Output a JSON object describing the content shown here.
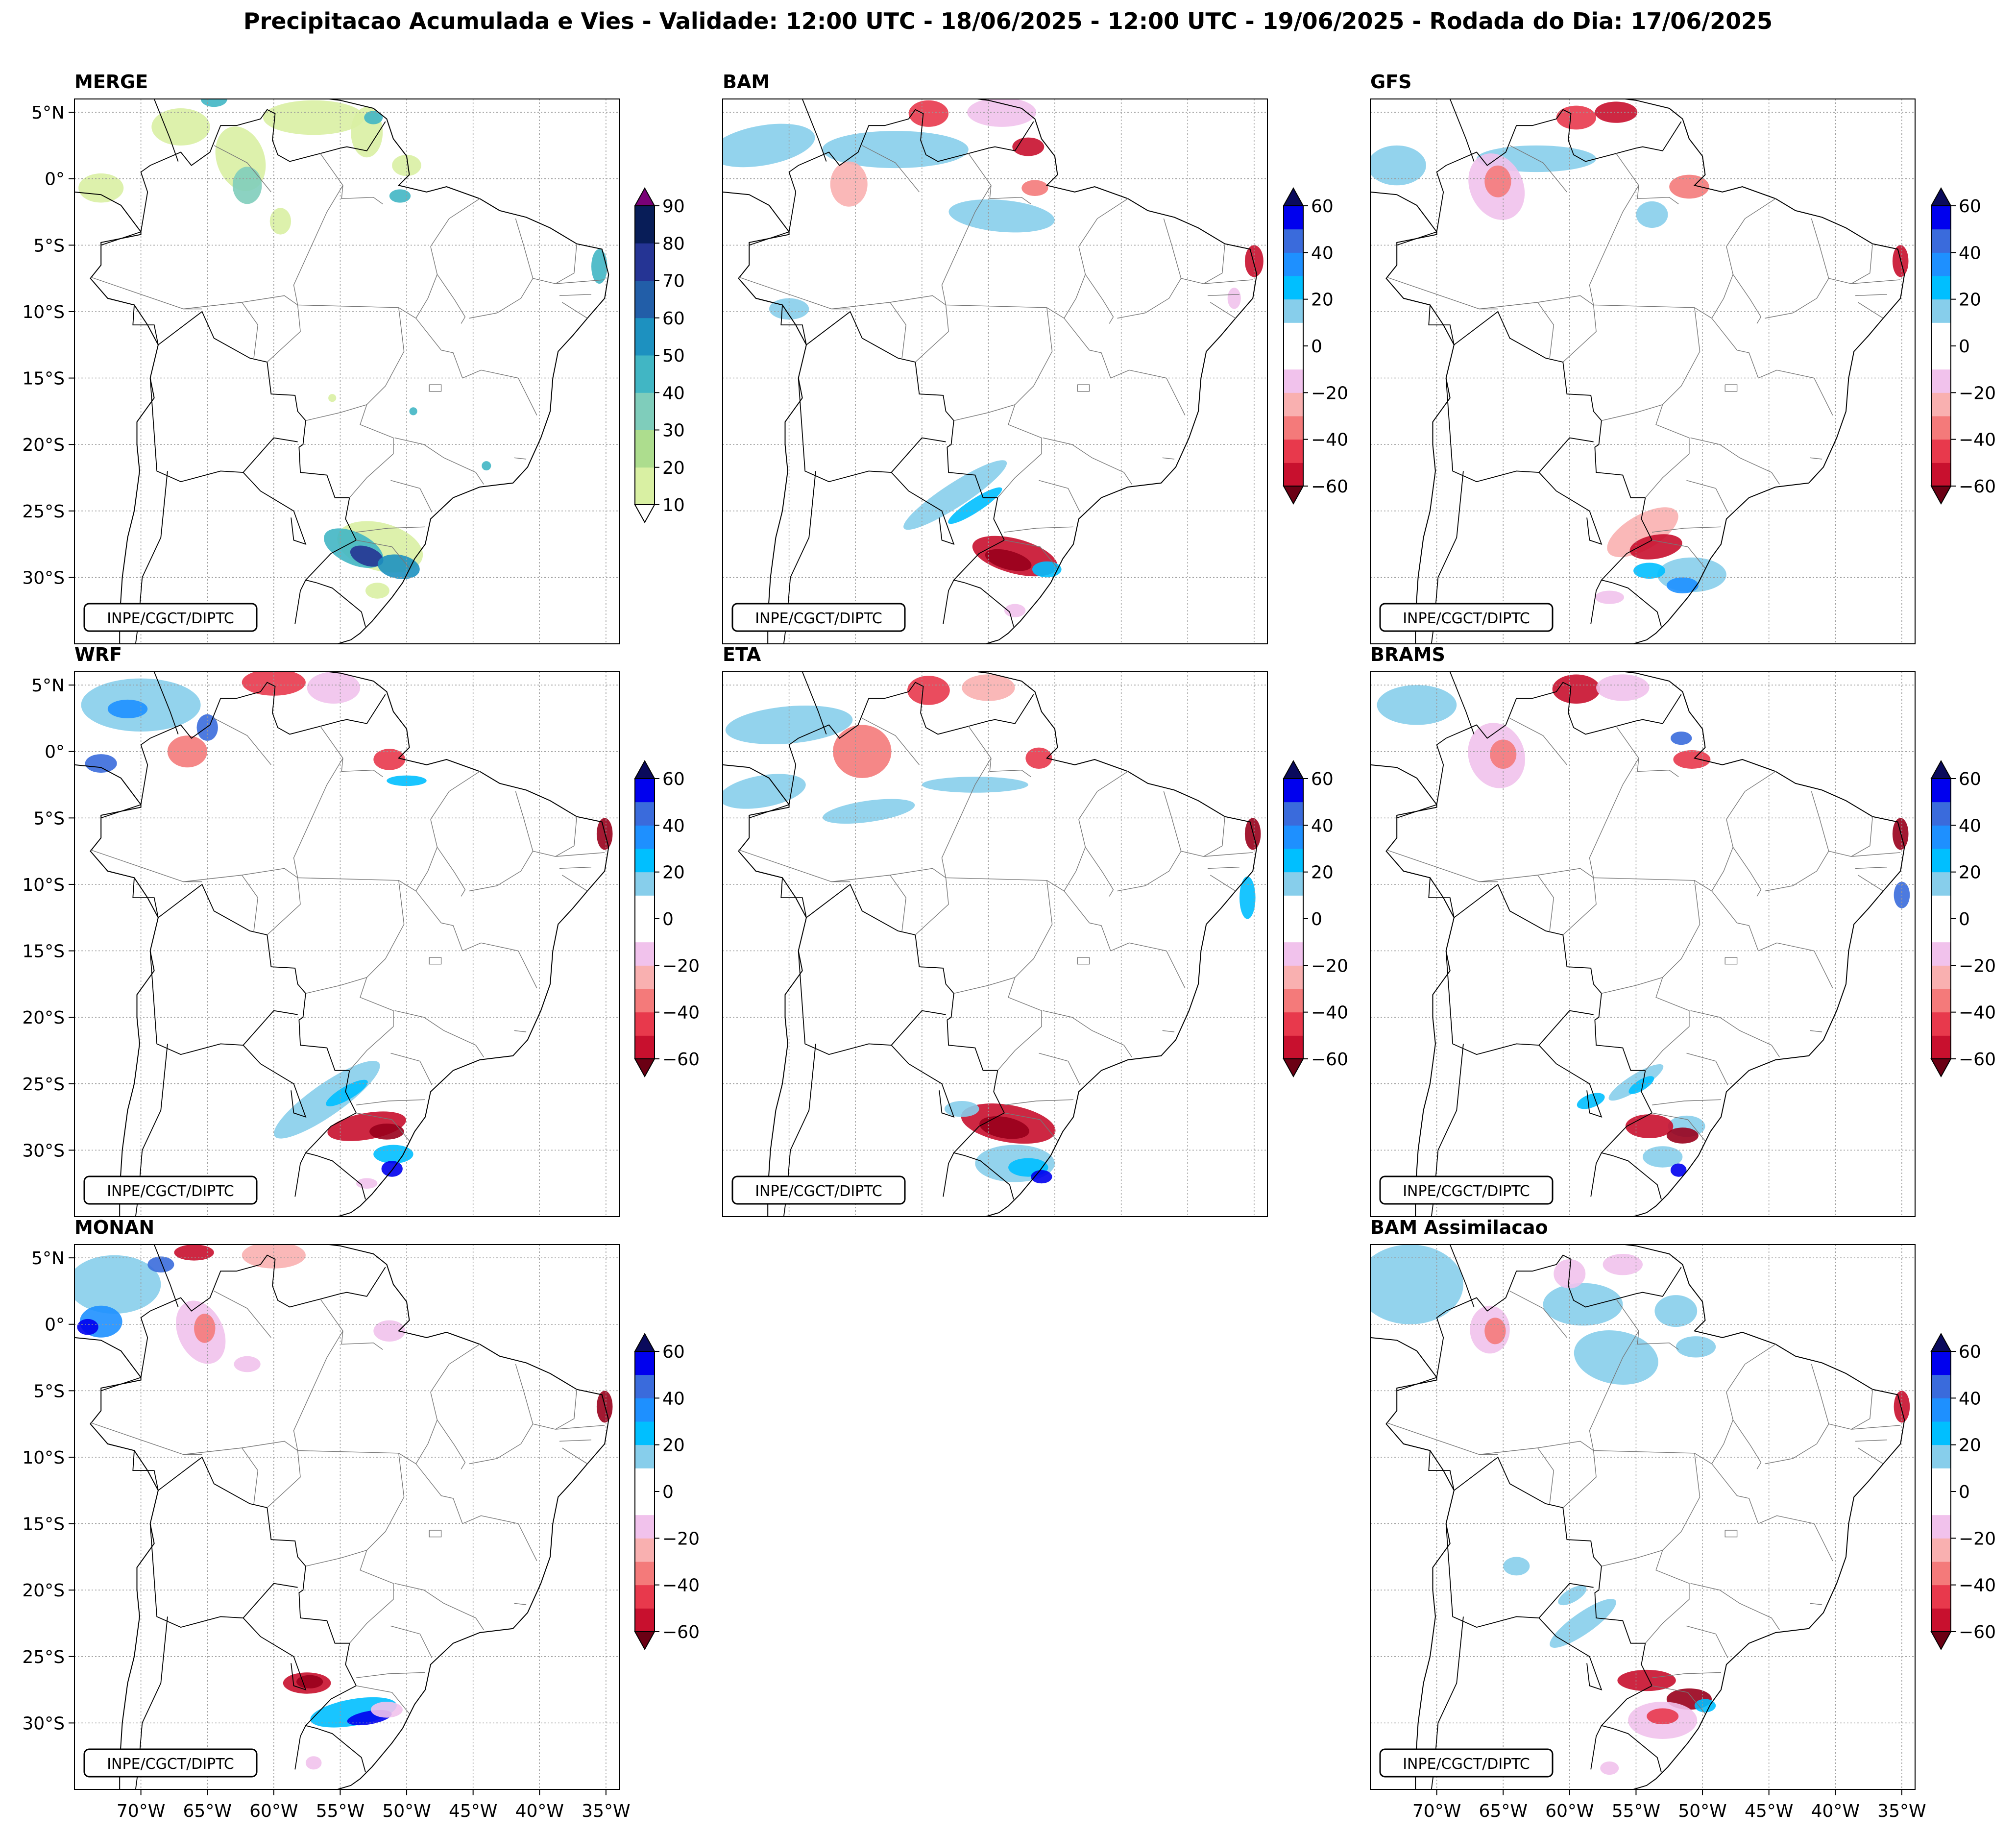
{
  "figure": {
    "title": "Precipitacao Acumulada e Vies - Validade: 12:00 UTC - 18/06/2025 - 12:00 UTC - 19/06/2025 - Rodada do Dia: 17/06/2025",
    "credit": "INPE/CGCT/DIPTC"
  },
  "axes": {
    "lat_ticks": [
      "5°N",
      "0°",
      "5°S",
      "10°S",
      "15°S",
      "20°S",
      "25°S",
      "30°S"
    ],
    "lon_ticks": [
      "70°W",
      "65°W",
      "60°W",
      "55°W",
      "50°W",
      "45°W",
      "40°W",
      "35°W"
    ]
  },
  "panels": [
    {
      "id": "merge",
      "label": "MERGE",
      "type": "precip",
      "show_lat": true,
      "show_lon": false
    },
    {
      "id": "bam",
      "label": "BAM",
      "type": "bias",
      "show_lat": false,
      "show_lon": false
    },
    {
      "id": "gfs",
      "label": "GFS",
      "type": "bias",
      "show_lat": false,
      "show_lon": false
    },
    {
      "id": "wrf",
      "label": "WRF",
      "type": "bias",
      "show_lat": true,
      "show_lon": false
    },
    {
      "id": "eta",
      "label": "ETA",
      "type": "bias",
      "show_lat": false,
      "show_lon": false
    },
    {
      "id": "brams",
      "label": "BRAMS",
      "type": "bias",
      "show_lat": false,
      "show_lon": false
    },
    {
      "id": "monan",
      "label": "MONAN",
      "type": "bias",
      "show_lat": true,
      "show_lon": true
    },
    {
      "id": "bam_assim",
      "label": "BAM Assimilacao",
      "type": "bias",
      "show_lat": false,
      "show_lon": true
    }
  ],
  "colorbars": {
    "precip": {
      "ticks": [
        "90",
        "80",
        "70",
        "60",
        "50",
        "40",
        "30",
        "20",
        "10"
      ],
      "colors": [
        "#f7fcb9",
        "#d9f0a3",
        "#addd8e",
        "#7fcdbb",
        "#41b6c4",
        "#1d91c0",
        "#225ea8",
        "#253494",
        "#081d58"
      ],
      "extend_max_color": "#7a0177"
    },
    "bias": {
      "ticks": [
        "60",
        "40",
        "20",
        "0",
        "-20",
        "-40",
        "-60"
      ],
      "colors": [
        "#99001c",
        "#c8102e",
        "#e8394c",
        "#f47a7a",
        "#f9b0b0",
        "#f1c2ec",
        "#ffffff",
        "#ffffff",
        "#87ceeb",
        "#00bfff",
        "#1e90ff",
        "#3a6bdc",
        "#0000ee",
        "#00008b"
      ],
      "extend_min_color": "#6b0014",
      "extend_max_color": "#0a0a5c"
    }
  }
}
